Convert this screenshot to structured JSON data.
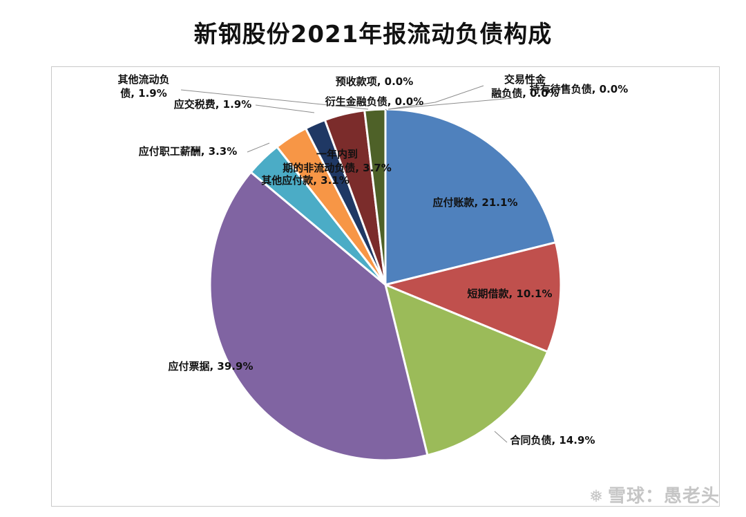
{
  "chart_data": {
    "type": "pie",
    "title": "新钢股份2021年报流动负债构成",
    "slices": [
      {
        "label": "应付账款",
        "value": 21.1,
        "display": "21.1%",
        "color": "#4f81bd"
      },
      {
        "label": "短期借款",
        "value": 10.1,
        "display": "10.1%",
        "color": "#c0504d"
      },
      {
        "label": "合同负债",
        "value": 14.9,
        "display": "14.9%",
        "color": "#9bbb59"
      },
      {
        "label": "应付票据",
        "value": 39.9,
        "display": "39.9%",
        "color": "#8064a2"
      },
      {
        "label": "应付职工薪酬",
        "value": 3.3,
        "display": "3.3%",
        "color": "#4bacc6"
      },
      {
        "label": "其他应付款",
        "value": 3.1,
        "display": "3.1%",
        "color": "#f79646"
      },
      {
        "label": "应交税费",
        "value": 1.9,
        "display": "1.9%",
        "color": "#1f3864"
      },
      {
        "label": "一年内到期的非流动负债",
        "value": 3.7,
        "display": "3.7%",
        "color": "#7b2c2b"
      },
      {
        "label": "其他流动负债",
        "value": 1.9,
        "display": "1.9%",
        "color": "#4e6128"
      },
      {
        "label": "衍生金融负债",
        "value": 0.0,
        "display": "0.0%",
        "color": "#1f3864"
      },
      {
        "label": "预收款项",
        "value": 0.0,
        "display": "0.0%",
        "color": "#7b2c2b"
      },
      {
        "label": "交易性金融负债",
        "value": 0.0,
        "display": "0.0%",
        "color": "#4f81bd"
      },
      {
        "label": "持有待售负债",
        "value": 0.0,
        "display": "0.0%",
        "color": "#c0504d"
      }
    ]
  },
  "watermark": {
    "brand": "雪球",
    "separator": "：",
    "author": "愚老头"
  }
}
